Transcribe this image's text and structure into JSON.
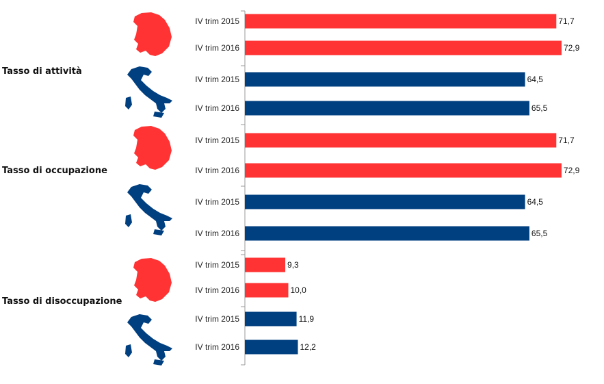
{
  "colors": {
    "toscana": "#ff3333",
    "italia": "#003f80",
    "axis": "#9a9a9a"
  },
  "chart_data": {
    "type": "bar",
    "orientation": "horizontal",
    "grid": false,
    "legend": "none",
    "groups": [
      {
        "label": "Tasso di attività",
        "subgroups": [
          {
            "region_icon": "tuscany-map-icon",
            "color": "#ff3333",
            "bars": [
              {
                "category": "IV trim 2015",
                "value": 71.7,
                "label": "71,7"
              },
              {
                "category": "IV trim 2016",
                "value": 72.9,
                "label": "72,9"
              }
            ]
          },
          {
            "region_icon": "italy-map-icon",
            "color": "#003f80",
            "bars": [
              {
                "category": "IV trim 2015",
                "value": 64.5,
                "label": "64,5"
              },
              {
                "category": "IV trim 2016",
                "value": 65.5,
                "label": "65,5"
              }
            ]
          }
        ]
      },
      {
        "label": "Tasso di occupazione",
        "subgroups": [
          {
            "region_icon": "tuscany-map-icon",
            "color": "#ff3333",
            "bars": [
              {
                "category": "IV trim 2015",
                "value": 71.7,
                "label": "71,7"
              },
              {
                "category": "IV trim 2016",
                "value": 72.9,
                "label": "72,9"
              }
            ]
          },
          {
            "region_icon": "italy-map-icon",
            "color": "#003f80",
            "bars": [
              {
                "category": "IV trim 2015",
                "value": 64.5,
                "label": "64,5"
              },
              {
                "category": "IV trim 2016",
                "value": 65.5,
                "label": "65,5"
              }
            ]
          }
        ]
      },
      {
        "label": "Tasso di disoccupazione",
        "subgroups": [
          {
            "region_icon": "tuscany-map-icon",
            "color": "#ff3333",
            "bars": [
              {
                "category": "IV trim 2015",
                "value": 9.3,
                "label": "9,3"
              },
              {
                "category": "IV trim 2016",
                "value": 10.0,
                "label": "10,0"
              }
            ]
          },
          {
            "region_icon": "italy-map-icon",
            "color": "#003f80",
            "bars": [
              {
                "category": "IV trim 2015",
                "value": 11.9,
                "label": "11,9"
              },
              {
                "category": "IV trim 2016",
                "value": 12.2,
                "label": "12,2"
              }
            ]
          }
        ]
      }
    ]
  }
}
